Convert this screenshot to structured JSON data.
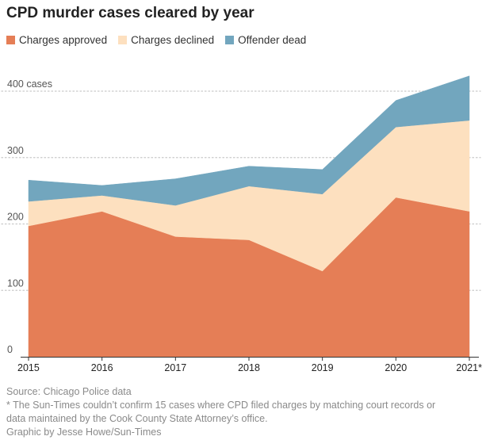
{
  "chart_data": {
    "type": "area",
    "stacked": true,
    "title": "CPD murder cases cleared by year",
    "categories": [
      "2015",
      "2016",
      "2017",
      "2018",
      "2019",
      "2020",
      "2021*"
    ],
    "series": [
      {
        "name": "Charges approved",
        "color": "#e57e56",
        "values": [
          197,
          219,
          181,
          176,
          129,
          240,
          219
        ]
      },
      {
        "name": "Charges declined",
        "color": "#fde0bf",
        "values": [
          37,
          24,
          47,
          81,
          116,
          106,
          137
        ]
      },
      {
        "name": "Offender dead",
        "color": "#72a6be",
        "values": [
          32,
          15,
          40,
          30,
          37,
          40,
          67
        ]
      }
    ],
    "ylim": [
      0,
      420
    ],
    "yticks": [
      0,
      100,
      200,
      300,
      400
    ],
    "ytick_labels": [
      "0",
      "100",
      "200",
      "300",
      "400 cases"
    ],
    "grid": true,
    "legend_position": "top-left"
  },
  "notes": {
    "source": "Source: Chicago Police data",
    "footnote_line1": "* The Sun-Times couldn’t confirm 15 cases where CPD filed charges by matching court records or",
    "footnote_line2": "data maintained by the Cook County State Attorney’s office.",
    "credit": "Graphic by Jesse Howe/Sun-Times"
  }
}
